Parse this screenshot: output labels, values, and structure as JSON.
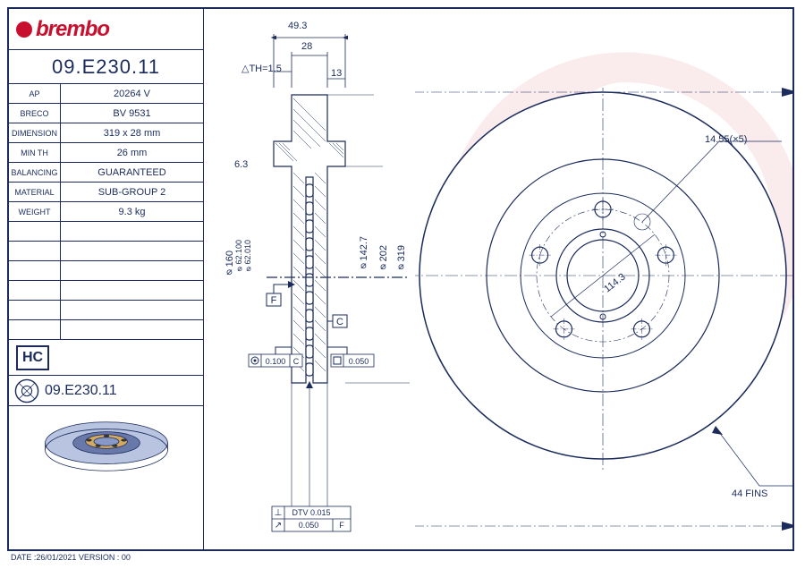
{
  "brand": "brembo",
  "part_number": "09.E230.11",
  "specs": [
    {
      "label": "AP",
      "value": "20264 V"
    },
    {
      "label": "BRECO",
      "value": "BV 9531"
    },
    {
      "label": "DIMENSION",
      "value": "319 x 28 mm"
    },
    {
      "label": "MIN TH",
      "value": "26 mm"
    },
    {
      "label": "BALANCING",
      "value": "GUARANTEED"
    },
    {
      "label": "MATERIAL",
      "value": "SUB-GROUP 2"
    },
    {
      "label": "WEIGHT",
      "value": "9.3 kg"
    }
  ],
  "hc_badge": "HC",
  "part_number_2": "09.E230.11",
  "footer": "DATE :26/01/2021 VERSION : 00",
  "dimensions": {
    "top_49_3": "49.3",
    "top_28": "28",
    "th_1_5": "△TH=1.5",
    "top_13": "13",
    "side_6_3": "6.3",
    "phi_160": "⌀160",
    "phi_62_100": "⌀62.100",
    "phi_62_010": "⌀62.010",
    "f_label": "F",
    "c_label": "C",
    "gdt_0_100": "◎ 0.100 C",
    "gdt_0_050": "⬜ 0.050",
    "dtv": "⊥ DTV 0.015",
    "runout": "↗ 0.050 F",
    "phi_142_7": "⌀142.7",
    "phi_202": "⌀202",
    "phi_319": "⌀319",
    "bolt_14_55": "14.55(×5)",
    "pcd_114_3": "114.3",
    "fins": "44 FINS"
  },
  "colors": {
    "line": "#1a2b5c",
    "red": "#c8102e",
    "disc_fill": "#b8c4e0",
    "hub_fill": "#d4a960"
  },
  "front_view": {
    "outer_r": 205,
    "inner_r": 130,
    "hub_r": 52,
    "bore_r": 40,
    "bolt_pcd_r": 74,
    "bolt_r": 9,
    "n_bolts": 5
  }
}
